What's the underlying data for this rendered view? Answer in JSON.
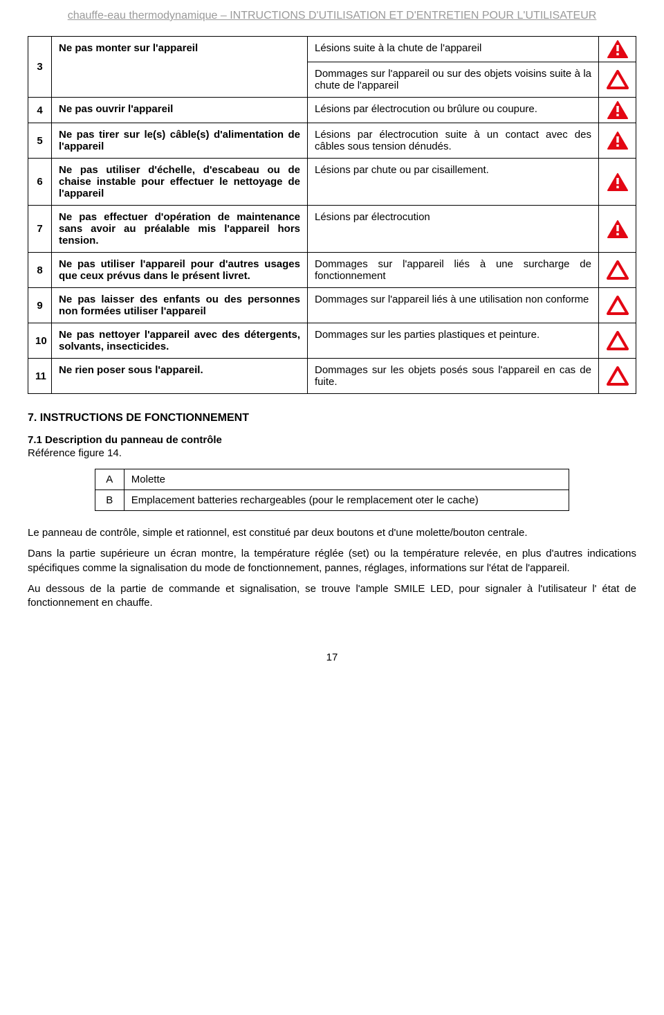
{
  "header": "chauffe-eau thermodynamique – INTRUCTIONS D'UTILISATION ET D'ENTRETIEN POUR L'UTILISATEUR",
  "warnings": [
    {
      "num": "3",
      "rule": "Ne pas monter sur l'appareil",
      "risks": [
        {
          "text": "Lésions suite à la chute de l'appareil",
          "icon": "filled"
        },
        {
          "text": "Dommages sur l'appareil ou sur des objets voisins suite à la chute de l'appareil",
          "icon": "outline"
        }
      ]
    },
    {
      "num": "4",
      "rule": "Ne pas ouvrir l'appareil",
      "risks": [
        {
          "text": "Lésions par électrocution ou brûlure ou coupure.",
          "icon": "filled"
        }
      ]
    },
    {
      "num": "5",
      "rule": "Ne pas tirer sur le(s) câble(s) d'alimentation de l'appareil",
      "risks": [
        {
          "text": "Lésions par électrocution suite à un contact avec des câbles sous tension dénudés.",
          "icon": "filled"
        }
      ]
    },
    {
      "num": "6",
      "rule": "Ne pas utiliser d'échelle, d'escabeau ou de chaise instable pour effectuer le nettoyage de l'appareil",
      "risks": [
        {
          "text": "Lésions par chute ou par cisaillement.",
          "icon": "filled"
        }
      ]
    },
    {
      "num": "7",
      "rule": "Ne pas effectuer d'opération de maintenance sans avoir au préalable mis l'appareil hors tension.",
      "risks": [
        {
          "text": "Lésions par électrocution",
          "icon": "filled"
        }
      ]
    },
    {
      "num": "8",
      "rule": "Ne pas utiliser l'appareil pour d'autres usages que ceux prévus dans le présent livret.",
      "risks": [
        {
          "text": "Dommages sur l'appareil liés à une surcharge de fonctionnement",
          "icon": "outline"
        }
      ]
    },
    {
      "num": "9",
      "rule": "Ne pas laisser des enfants ou des personnes non formées utiliser l'appareil",
      "risks": [
        {
          "text": "Dommages sur l'appareil liés à une utilisation non conforme",
          "icon": "outline"
        }
      ]
    },
    {
      "num": "10",
      "rule": "Ne pas nettoyer l'appareil avec des détergents, solvants, insecticides.",
      "risks": [
        {
          "text": "Dommages sur les parties plastiques et peinture.",
          "icon": "outline"
        }
      ]
    },
    {
      "num": "11",
      "rule": "Ne rien poser sous l'appareil.",
      "risks": [
        {
          "text": "Dommages sur les objets posés sous l'appareil en cas de fuite.",
          "icon": "outline"
        }
      ]
    }
  ],
  "section7_title": "7. INSTRUCTIONS DE FONCTIONNEMENT",
  "section7_1_title": "7.1 Description du panneau de contrôle",
  "section7_1_ref": "Référence figure 14.",
  "panel_rows": [
    {
      "key": "A",
      "desc": "Molette"
    },
    {
      "key": "B",
      "desc": "Emplacement batteries rechargeables (pour le remplacement oter le cache)"
    }
  ],
  "paragraphs": [
    "Le panneau de contrôle, simple et rationnel, est constitué par deux boutons et d'une molette/bouton centrale.",
    "Dans la partie supérieure un écran montre, la température réglée (set) ou la température relevée, en plus d'autres indications spécifiques comme la signalisation du mode de fonctionnement, pannes, réglages, informations sur l'état de l'appareil.",
    "Au dessous de la partie de commande et signalisation, se trouve l'ample SMILE LED, pour signaler à l'utilisateur l' état de fonctionnement en chauffe."
  ],
  "page_number": "17",
  "colors": {
    "triangle_red": "#e30613",
    "header_gray": "#9a9a9a"
  }
}
